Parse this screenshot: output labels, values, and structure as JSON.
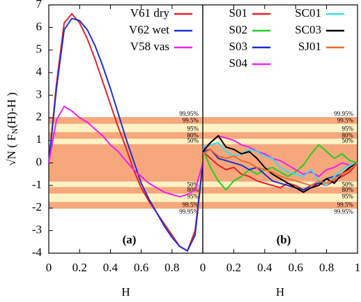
{
  "chart_data": [
    {
      "type": "line",
      "panel_label": "(a)",
      "xlabel": "H",
      "ylabel_parts": [
        "√N ( F",
        "N",
        "(H)-H )"
      ],
      "xlim": [
        0,
        1
      ],
      "xticks": [
        0,
        0.2,
        0.4,
        0.6,
        0.8
      ],
      "ylim": [
        -4,
        7
      ],
      "yticks": [
        -4,
        -3,
        -2,
        -1,
        0,
        1,
        2,
        3,
        4,
        5,
        6,
        7
      ],
      "legend_columns": 1,
      "band_colors": [
        "#f6a77c",
        "#fdf2c4"
      ],
      "bands": [
        {
          "label": "99.95%",
          "value": 2.03
        },
        {
          "label": "99.5%",
          "value": 1.73
        },
        {
          "label": "95%",
          "value": 1.36
        },
        {
          "label": "80%",
          "value": 1.07
        },
        {
          "label": "50%",
          "value": 0.83
        },
        {
          "label": "50%",
          "value": -0.83
        },
        {
          "label": "80%",
          "value": -1.07
        },
        {
          "label": "95%",
          "value": -1.36
        },
        {
          "label": "99.5%",
          "value": -1.73
        },
        {
          "label": "99.95%",
          "value": -2.03
        }
      ],
      "x": [
        0,
        0.05,
        0.1,
        0.15,
        0.2,
        0.25,
        0.3,
        0.35,
        0.4,
        0.45,
        0.5,
        0.55,
        0.6,
        0.65,
        0.7,
        0.75,
        0.8,
        0.85,
        0.9,
        0.95,
        1
      ],
      "series": [
        {
          "name": "V61 dry",
          "color": "#e8202a",
          "values": [
            0,
            3.5,
            6.2,
            6.6,
            6.2,
            5.5,
            4.6,
            3.6,
            2.6,
            1.6,
            0.7,
            -0.3,
            -1.1,
            -1.7,
            -2.2,
            -2.7,
            -3.2,
            -3.7,
            -3.9,
            -3.0,
            0
          ]
        },
        {
          "name": "V62 wet",
          "color": "#1f2fd0",
          "values": [
            0,
            3.3,
            5.9,
            6.4,
            6.3,
            5.9,
            5.2,
            4.3,
            3.3,
            2.2,
            1.1,
            0.1,
            -0.9,
            -1.6,
            -2.2,
            -2.8,
            -3.3,
            -3.7,
            -3.9,
            -3.2,
            0
          ]
        },
        {
          "name": "V58 vas",
          "color": "#f020f0",
          "values": [
            0,
            1.9,
            2.5,
            2.3,
            2.0,
            1.8,
            1.5,
            1.2,
            0.8,
            0.5,
            0.1,
            -0.3,
            -0.6,
            -0.9,
            -1.1,
            -1.3,
            -1.4,
            -1.5,
            -1.4,
            -1.2,
            0
          ]
        }
      ]
    },
    {
      "type": "line",
      "panel_label": "(b)",
      "xlabel": "H",
      "xlim": [
        0,
        1
      ],
      "xticks": [
        0,
        0.2,
        0.4,
        0.6,
        0.8,
        1
      ],
      "ylim": [
        -4,
        7
      ],
      "legend_columns": 2,
      "band_colors": [
        "#f6a77c",
        "#fdf2c4"
      ],
      "bands": [
        {
          "label": "99.95%",
          "value": 2.03
        },
        {
          "label": "99.5%",
          "value": 1.73
        },
        {
          "label": "95%",
          "value": 1.36
        },
        {
          "label": "80%",
          "value": 1.07
        },
        {
          "label": "50%",
          "value": 0.83
        },
        {
          "label": "50%",
          "value": -0.83
        },
        {
          "label": "80%",
          "value": -1.07
        },
        {
          "label": "95%",
          "value": -1.36
        },
        {
          "label": "99.5%",
          "value": -1.73
        },
        {
          "label": "99.95%",
          "value": -2.03
        }
      ],
      "x": [
        0,
        0.05,
        0.1,
        0.15,
        0.2,
        0.25,
        0.3,
        0.35,
        0.4,
        0.45,
        0.5,
        0.55,
        0.6,
        0.65,
        0.7,
        0.75,
        0.8,
        0.85,
        0.9,
        0.95,
        1
      ],
      "series": [
        {
          "name": "S01",
          "color": "#e8202a",
          "values": [
            0.5,
            0.2,
            -0.1,
            -0.3,
            -0.2,
            -0.5,
            -0.6,
            -0.8,
            -0.9,
            -1.0,
            -1.1,
            -0.9,
            -1.0,
            -1.2,
            -1.1,
            -0.9,
            -1.0,
            -0.8,
            -0.6,
            -0.4,
            0
          ]
        },
        {
          "name": "S02",
          "color": "#20d020",
          "values": [
            0.6,
            -0.2,
            -0.8,
            -1.2,
            -0.8,
            -0.6,
            -0.3,
            -0.5,
            -0.3,
            -0.2,
            -0.4,
            -0.6,
            -0.4,
            -0.1,
            0.4,
            0.8,
            0.5,
            0.2,
            0.4,
            0.1,
            0
          ]
        },
        {
          "name": "S03",
          "color": "#1f2fd0",
          "values": [
            0.5,
            0.6,
            0.2,
            0.1,
            0.0,
            -0.1,
            -0.3,
            -0.2,
            -0.5,
            -0.8,
            -0.9,
            -1.0,
            -1.1,
            -1.2,
            -1.0,
            -0.9,
            -0.7,
            -0.6,
            -0.5,
            -0.2,
            0
          ]
        },
        {
          "name": "S04",
          "color": "#f020f0",
          "values": [
            0.6,
            0.9,
            1.2,
            1.1,
            1.0,
            0.8,
            0.7,
            0.5,
            0.4,
            0.2,
            0.1,
            -0.1,
            -0.3,
            -0.5,
            -0.4,
            -0.6,
            -0.3,
            -0.2,
            0.0,
            -0.1,
            0
          ]
        },
        {
          "name": "SC01",
          "color": "#30e0f0",
          "values": [
            0.7,
            0.8,
            0.9,
            0.5,
            0.3,
            0.4,
            0.6,
            0.5,
            0.3,
            0.2,
            -0.2,
            -0.4,
            -0.5,
            -0.6,
            -0.3,
            -0.8,
            -1.0,
            -0.6,
            -0.3,
            -0.1,
            0
          ]
        },
        {
          "name": "SC03",
          "color": "#000000",
          "values": [
            0.5,
            0.9,
            1.2,
            0.7,
            0.6,
            0.4,
            0.5,
            0.2,
            -0.2,
            -0.5,
            -0.7,
            -0.9,
            -1.1,
            -1.3,
            -1.1,
            -1.0,
            -0.7,
            -0.9,
            -0.5,
            -0.2,
            0
          ]
        },
        {
          "name": "SJ01",
          "color": "#f06a30",
          "values": [
            0.4,
            0.6,
            0.3,
            0.2,
            0.3,
            0.1,
            0.0,
            -0.2,
            -0.3,
            -0.4,
            -0.6,
            -0.7,
            -0.8,
            -0.9,
            -1.0,
            -0.8,
            -0.9,
            -0.7,
            -0.5,
            -0.3,
            0
          ]
        }
      ]
    }
  ]
}
